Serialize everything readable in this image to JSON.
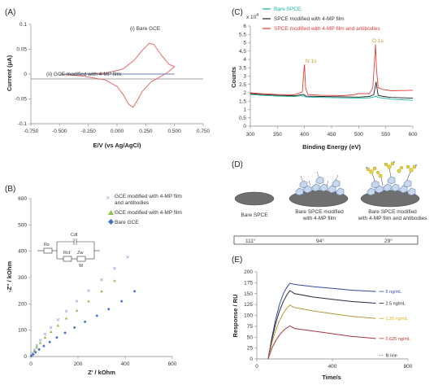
{
  "panels": {
    "A": {
      "letter": "(A)"
    },
    "B": {
      "letter": "(B)"
    },
    "C": {
      "letter": "(C)"
    },
    "D": {
      "letter": "(D)"
    },
    "E": {
      "letter": "(E)"
    }
  },
  "chart_data": [
    {
      "id": "A",
      "type": "line",
      "xlabel": "E/V (vs Ag/AgCl)",
      "ylabel": "Current (μA)",
      "xlim": [
        -0.75,
        0.75
      ],
      "ylim": [
        -0.1,
        0.1
      ],
      "xticks": [
        "-0.750",
        "-0.500",
        "-0.250",
        "0.000",
        "0.250",
        "0.500",
        "0.750"
      ],
      "yticks": [
        "-0.1",
        "-0.05",
        "0",
        "0.05",
        "0.1"
      ],
      "annotations": [
        "(i) Bare GCE",
        "(ii) GCE modified with 4-MP film"
      ],
      "series": [
        {
          "label": "(i) Bare GCE",
          "color": "#e46a6a",
          "x": [
            -0.5,
            -0.3,
            -0.1,
            0.05,
            0.15,
            0.22,
            0.28,
            0.32,
            0.38,
            0.45,
            0.5,
            0.45,
            0.38,
            0.3,
            0.22,
            0.18,
            0.14,
            0.1,
            0.05,
            0.0,
            -0.1,
            -0.3,
            -0.5
          ],
          "y": [
            0.0,
            0.0,
            0.002,
            0.01,
            0.028,
            0.048,
            0.062,
            0.06,
            0.04,
            0.02,
            0.015,
            0.005,
            -0.005,
            -0.015,
            -0.035,
            -0.052,
            -0.067,
            -0.06,
            -0.04,
            -0.025,
            -0.012,
            -0.004,
            0.0
          ]
        },
        {
          "label": "(ii) GCE modified with 4-MP film",
          "color": "#6a7fb0",
          "x": [
            -0.5,
            0.5
          ],
          "y": [
            0.0,
            0.0
          ]
        }
      ]
    },
    {
      "id": "B",
      "type": "scatter",
      "xlabel": "Z' / kOhm",
      "ylabel": "-Z'' / kOhm",
      "xlim": [
        0,
        600
      ],
      "ylim": [
        0,
        600
      ],
      "xticks": [
        "0",
        "200",
        "400",
        "600"
      ],
      "yticks": [
        "0",
        "100",
        "200",
        "300",
        "400",
        "500",
        "600"
      ],
      "circuit_labels": [
        "Rs",
        "Cdl",
        "Rct",
        "Zw",
        "W"
      ],
      "series": [
        {
          "name": "GCE modified with 4-MP film and antibodies",
          "color": "#a9a6d6",
          "marker": "x",
          "x": [
            2,
            8,
            15,
            25,
            40,
            60,
            85,
            115,
            150,
            195,
            245,
            300,
            355,
            410
          ],
          "y": [
            3,
            12,
            25,
            42,
            62,
            85,
            110,
            140,
            172,
            210,
            250,
            292,
            335,
            378
          ]
        },
        {
          "name": "GCE modified with 4-MP film",
          "color": "#8fbf4d",
          "marker": "triangle",
          "x": [
            2,
            8,
            15,
            25,
            40,
            60,
            85,
            115,
            150,
            195,
            245,
            300,
            355
          ],
          "y": [
            3,
            10,
            20,
            35,
            52,
            72,
            94,
            118,
            145,
            175,
            210,
            248,
            288
          ]
        },
        {
          "name": "Bare GCE",
          "color": "#3f6fc7",
          "marker": "diamond",
          "x": [
            2,
            10,
            20,
            35,
            55,
            80,
            110,
            145,
            185,
            230,
            280,
            330,
            385,
            440
          ],
          "y": [
            2,
            8,
            16,
            27,
            40,
            55,
            72,
            90,
            110,
            132,
            155,
            180,
            210,
            248
          ]
        }
      ]
    },
    {
      "id": "C",
      "type": "line",
      "xlabel": "Binding Energy (eV)",
      "ylabel": "Counts",
      "multiplier": "x 10",
      "exponent": "4",
      "xlim": [
        300,
        600
      ],
      "ylim": [
        0,
        6
      ],
      "xticks": [
        "300",
        "350",
        "400",
        "450",
        "500",
        "550",
        "600"
      ],
      "yticks": [
        "0",
        "0.5",
        "1",
        "1.5",
        "2",
        "2.5",
        "3",
        "3.5",
        "4",
        "4.5",
        "5",
        "5.5",
        "6"
      ],
      "peak_labels": [
        "N 1s",
        "O 1s"
      ],
      "peak_label_color": "#c8962e",
      "series": [
        {
          "name": "Bare SPCE",
          "color": "#19b5a5",
          "x": [
            300,
            320,
            350,
            380,
            398,
            400,
            402,
            430,
            470,
            500,
            520,
            528,
            532,
            536,
            545,
            560,
            600
          ],
          "y": [
            1.9,
            1.85,
            1.8,
            1.78,
            1.82,
            1.8,
            1.75,
            1.72,
            1.7,
            1.68,
            1.7,
            1.75,
            1.8,
            1.72,
            1.68,
            1.62,
            1.55
          ]
        },
        {
          "name": "SPCE modified with 4-MP film",
          "color": "#222222",
          "x": [
            300,
            320,
            350,
            380,
            398,
            400,
            402,
            430,
            470,
            500,
            520,
            528,
            532,
            536,
            545,
            560,
            600
          ],
          "y": [
            1.95,
            1.9,
            1.85,
            1.82,
            1.9,
            1.88,
            1.8,
            1.78,
            1.76,
            1.74,
            1.78,
            1.9,
            2.65,
            1.85,
            1.78,
            1.72,
            1.68
          ]
        },
        {
          "name": "SPCE modified with 4-MP film and antibodies",
          "color": "#e0413b",
          "x": [
            300,
            320,
            350,
            380,
            396,
            399,
            400,
            402,
            406,
            430,
            470,
            490,
            500,
            520,
            526,
            529,
            531,
            533,
            536,
            545,
            560,
            600
          ],
          "y": [
            2.0,
            1.95,
            1.9,
            1.88,
            2.05,
            3.4,
            3.7,
            2.3,
            1.9,
            1.85,
            1.83,
            1.88,
            1.95,
            1.95,
            2.3,
            3.8,
            4.9,
            3.4,
            2.3,
            2.2,
            2.12,
            2.15
          ]
        }
      ]
    },
    {
      "id": "E",
      "type": "line",
      "xlabel": "Time/s",
      "ylabel": "Response / RU",
      "xlim": [
        0,
        800
      ],
      "ylim": [
        0,
        200
      ],
      "xticks": [
        "0",
        "400",
        "800"
      ],
      "yticks": [
        "0",
        "25",
        "50",
        "75",
        "100",
        "125",
        "150",
        "175",
        "200"
      ],
      "series": [
        {
          "name": "5 ng/mL",
          "color": "#2b4fa8",
          "x": [
            60,
            80,
            100,
            120,
            140,
            160,
            175,
            200,
            300,
            400,
            500,
            630
          ],
          "y": [
            0,
            50,
            92,
            125,
            150,
            165,
            174,
            171,
            166,
            162,
            158,
            155
          ]
        },
        {
          "name": "2.5 ng/mL",
          "color": "#222222",
          "x": [
            60,
            80,
            100,
            120,
            140,
            160,
            175,
            200,
            300,
            400,
            500,
            630
          ],
          "y": [
            0,
            45,
            82,
            110,
            132,
            148,
            157,
            150,
            142,
            137,
            132,
            128
          ]
        },
        {
          "name": "1.25 ng/mL",
          "color": "#d8b21a",
          "x": [
            60,
            80,
            100,
            120,
            140,
            160,
            175,
            200,
            300,
            400,
            500,
            630
          ],
          "y": [
            0,
            38,
            66,
            88,
            105,
            117,
            124,
            118,
            110,
            104,
            98,
            93
          ]
        },
        {
          "name": "0.625 ng/mL",
          "color": "#c0342c",
          "x": [
            60,
            80,
            100,
            120,
            140,
            160,
            175,
            200,
            300,
            400,
            500,
            630
          ],
          "y": [
            0,
            25,
            42,
            55,
            65,
            72,
            76,
            70,
            64,
            58,
            52,
            47
          ]
        },
        {
          "name": "fit line",
          "color": "#55409a",
          "x": [],
          "y": []
        }
      ]
    }
  ],
  "schematic": {
    "labels": [
      "Bare SPCE",
      "Bare SPCE modified",
      "with 4-MP film",
      "Bare SPCE modified",
      "with 4-MP film and antibodies"
    ],
    "contact_angles": [
      "111°",
      "94°",
      "29°"
    ]
  }
}
